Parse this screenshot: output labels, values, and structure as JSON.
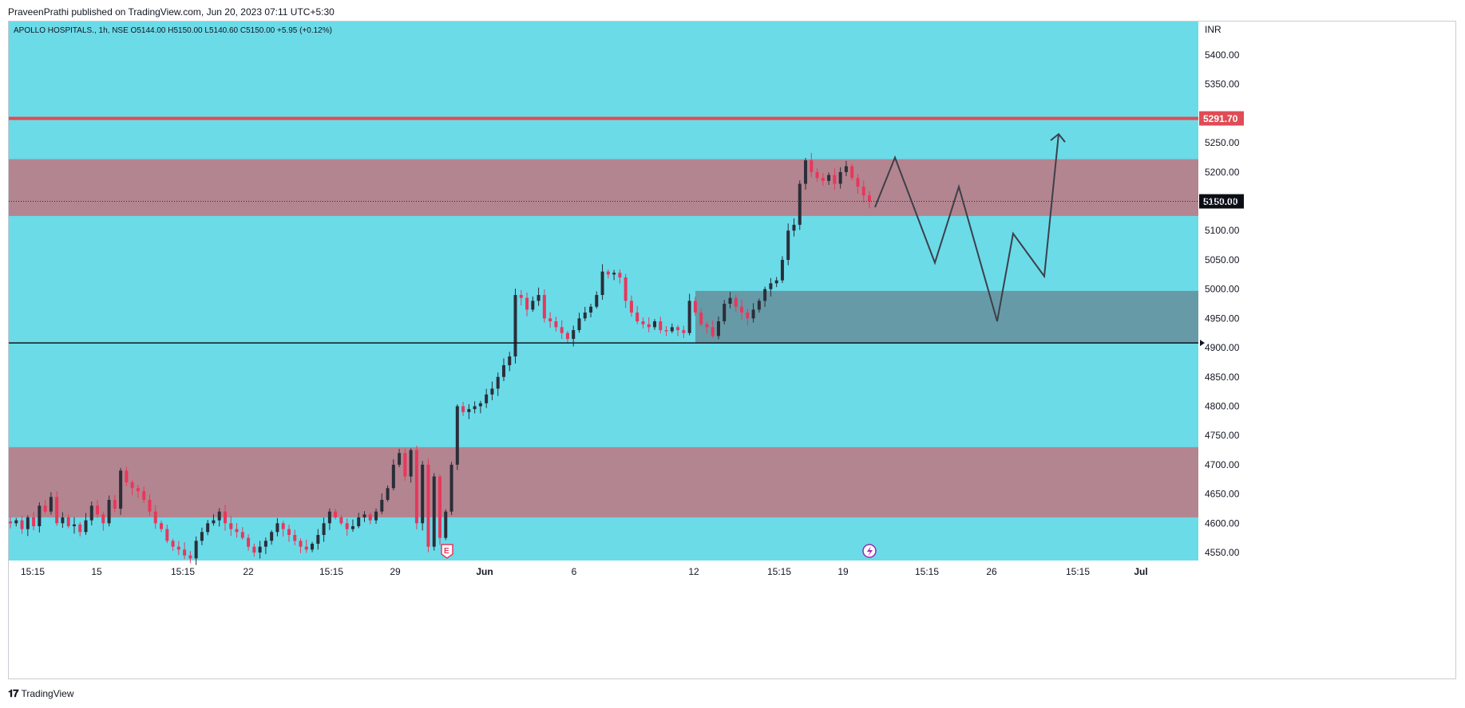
{
  "published": "PraveenPrathi published on TradingView.com, Jun 20, 2023 07:11 UTC+5:30",
  "legend": {
    "symbol": "APOLLO HOSPITALS., 1h, NSE",
    "open": "O5144.00",
    "high": "H5150.00",
    "low": "L5140.60",
    "close": "C5150.00",
    "change": "+5.95 (+0.12%)"
  },
  "currency": "INR",
  "footer": {
    "brand": "TradingView",
    "logo_icon": "tradingview-logo-icon"
  },
  "colors": {
    "background": "#6bdbe8",
    "zone": "#b38590",
    "demand_zone": "#679aa7",
    "bull": "#2a2e39",
    "bear": "#e8375c",
    "resistance": "#e04b55",
    "projection": "#3d3f4a"
  },
  "chart_data": {
    "type": "candlestick",
    "title": "APOLLO HOSPITALS., 1h, NSE",
    "ylim": [
      4535,
      5450
    ],
    "y_ticks": [
      5400,
      5350,
      5300,
      5250,
      5200,
      5150,
      5100,
      5050,
      5000,
      4950,
      4900,
      4850,
      4800,
      4750,
      4700,
      4650,
      4600,
      4550
    ],
    "x_ticks": [
      "15:15",
      "15",
      "15:15",
      "22",
      "15:15",
      "29",
      "Jun",
      "6",
      "12",
      "15:15",
      "19",
      "15:15",
      "26",
      "15:15",
      "Jul"
    ],
    "horizontal_lines": [
      {
        "name": "resistance",
        "price": 5291.7,
        "label": "5291.70"
      },
      {
        "name": "support",
        "price": 4908
      },
      {
        "name": "last-price",
        "price": 5150,
        "label": "5150.00"
      }
    ],
    "zones": [
      {
        "name": "upper-supply-zone",
        "from": 5125,
        "to": 5222
      },
      {
        "name": "demand-zone",
        "from": 4907,
        "to": 4997
      },
      {
        "name": "lower-zone",
        "from": 4610,
        "to": 4730
      }
    ],
    "path_points": [
      4600,
      4605,
      4590,
      4610,
      4595,
      4630,
      4620,
      4645,
      4600,
      4610,
      4595,
      4598,
      4585,
      4605,
      4630,
      4615,
      4600,
      4640,
      4625,
      4690,
      4670,
      4660,
      4655,
      4640,
      4620,
      4600,
      4590,
      4570,
      4560,
      4555,
      4545,
      4540,
      4570,
      4585,
      4600,
      4605,
      4620,
      4600,
      4590,
      4585,
      4575,
      4560,
      4550,
      4560,
      4570,
      4585,
      4600,
      4590,
      4580,
      4570,
      4560,
      4555,
      4565,
      4580,
      4600,
      4620,
      4610,
      4600,
      4590,
      4595,
      4610,
      4615,
      4605,
      4620,
      4640,
      4660,
      4700,
      4720,
      4680,
      4725,
      4600,
      4700,
      4560,
      4680,
      4575,
      4620,
      4700,
      4800,
      4790,
      4795,
      4800,
      4805,
      4820,
      4830,
      4850,
      4870,
      4885,
      4990,
      4985,
      4965,
      4980,
      4990,
      4950,
      4945,
      4935,
      4925,
      4915,
      4930,
      4950,
      4960,
      4970,
      4990,
      5030,
      5025,
      5028,
      5020,
      4980,
      4960,
      4945,
      4940,
      4935,
      4945,
      4930,
      4928,
      4935,
      4930,
      4925,
      4980,
      4960,
      4940,
      4935,
      4920,
      4945,
      4975,
      4985,
      4970,
      4960,
      4950,
      4965,
      4980,
      5000,
      5010,
      5015,
      5050,
      5100,
      5110,
      5180,
      5220,
      5200,
      5190,
      5185,
      5195,
      5180,
      5200,
      5210,
      5190,
      5175,
      5160,
      5150
    ],
    "x_range_labels": {
      "first_bar": "May (15:15)",
      "last_bar": "Jun 19"
    },
    "annotations": [
      {
        "type": "earnings-marker",
        "text": "E"
      },
      {
        "type": "dividend-marker",
        "icon": "lightning-icon"
      },
      {
        "type": "projection-zigzag",
        "points": [
          5140,
          5225,
          5045,
          5175,
          4945,
          5095,
          5022,
          5265
        ]
      }
    ]
  }
}
